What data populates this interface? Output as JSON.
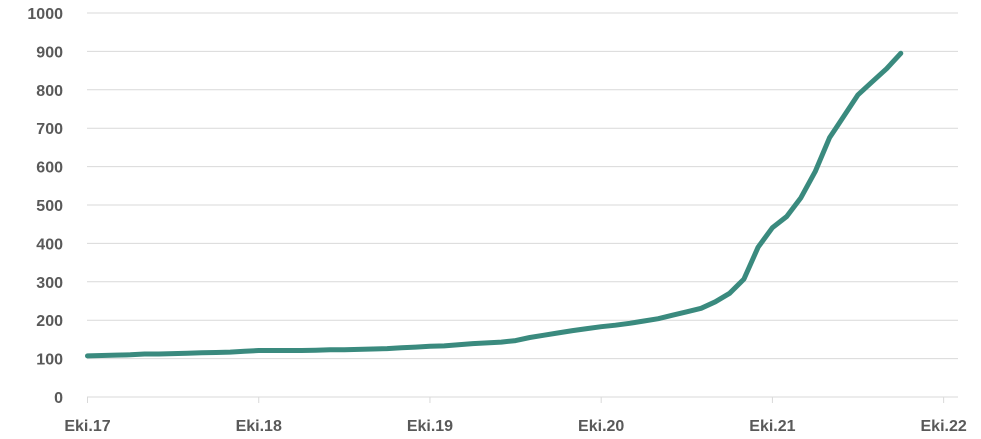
{
  "chart_data": {
    "type": "line",
    "title": "",
    "xlabel": "",
    "ylabel": "",
    "ylim": [
      0,
      1000
    ],
    "yticks": [
      0,
      100,
      200,
      300,
      400,
      500,
      600,
      700,
      800,
      900,
      1000
    ],
    "xticks": [
      "Eki.17",
      "Eki.18",
      "Eki.19",
      "Eki.20",
      "Eki.21",
      "Eki.22"
    ],
    "grid": true,
    "legend": "none",
    "colors": {
      "series": "#3a8a7e",
      "grid": "#d9d9d9",
      "text": "#595959"
    },
    "series": [
      {
        "values": [
          107,
          108,
          109,
          110,
          112,
          112,
          113,
          114,
          115,
          116,
          117,
          119,
          121,
          121,
          121,
          121,
          122,
          123,
          123,
          124,
          125,
          126,
          128,
          130,
          132,
          133,
          136,
          139,
          141,
          143,
          147,
          155,
          161,
          167,
          173,
          178,
          183,
          187,
          192,
          198,
          204,
          213,
          222,
          231,
          248,
          270,
          307,
          390,
          441,
          470,
          519,
          587,
          675,
          731,
          787,
          821,
          855,
          895
        ]
      }
    ]
  }
}
